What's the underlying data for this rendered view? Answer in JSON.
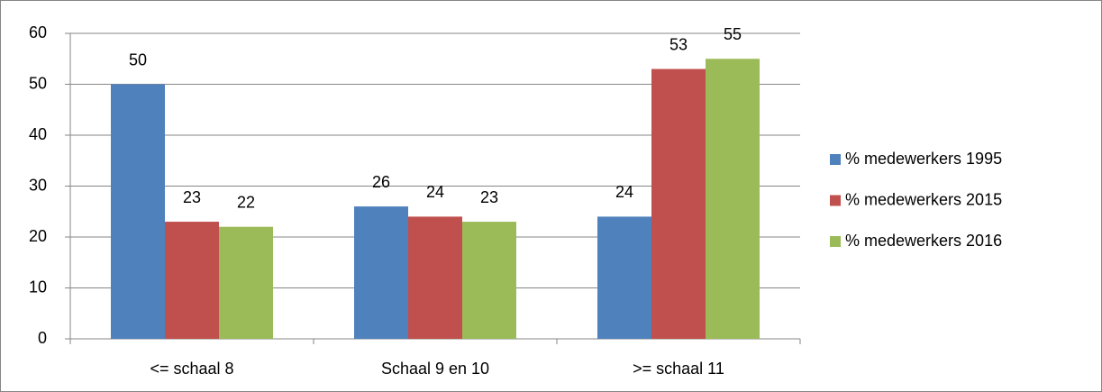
{
  "chart_data": {
    "type": "bar",
    "categories": [
      "<= schaal 8",
      "Schaal 9 en 10",
      ">= schaal 11"
    ],
    "series": [
      {
        "name": "% medewerkers 1995",
        "color": "#4f81bd",
        "values": [
          50,
          26,
          24
        ]
      },
      {
        "name": "% medewerkers 2015",
        "color": "#c0504d",
        "values": [
          23,
          24,
          53
        ]
      },
      {
        "name": "% medewerkers 2016",
        "color": "#9bbb59",
        "values": [
          22,
          23,
          55
        ]
      }
    ],
    "ylim": [
      0,
      60
    ],
    "yticks": [
      0,
      10,
      20,
      30,
      40,
      50,
      60
    ],
    "grid": true,
    "legend": "right"
  }
}
